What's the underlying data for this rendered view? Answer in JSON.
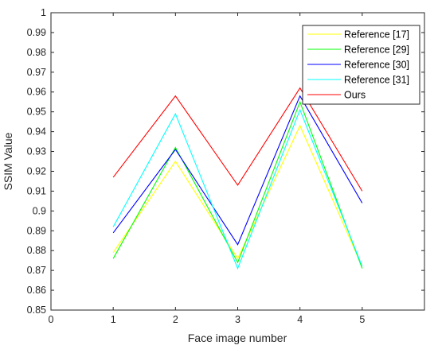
{
  "chart_data": {
    "type": "line",
    "xlabel": "Face image number",
    "ylabel": "SSIM Value",
    "xlim": [
      0,
      6
    ],
    "ylim": [
      0.85,
      1.0
    ],
    "xticks": [
      "0",
      "1",
      "2",
      "3",
      "4",
      "5"
    ],
    "yticks": [
      "0.85",
      "0.86",
      "0.87",
      "0.88",
      "0.89",
      "0.9",
      "0.91",
      "0.92",
      "0.93",
      "0.94",
      "0.95",
      "0.96",
      "0.97",
      "0.98",
      "0.99",
      "1"
    ],
    "x": [
      1,
      2,
      3,
      4,
      5
    ],
    "grid": false,
    "legend_position": "top-right",
    "series": [
      {
        "name": "Reference [17]",
        "color": "#ffff00",
        "values": [
          0.879,
          0.925,
          0.876,
          0.943,
          0.872
        ]
      },
      {
        "name": "Reference [29]",
        "color": "#00ff00",
        "values": [
          0.876,
          0.932,
          0.874,
          0.955,
          0.871
        ]
      },
      {
        "name": "Reference [30]",
        "color": "#0000ff",
        "values": [
          0.889,
          0.931,
          0.883,
          0.958,
          0.904
        ]
      },
      {
        "name": "Reference [31]",
        "color": "#00ffff",
        "values": [
          0.892,
          0.949,
          0.871,
          0.951,
          0.872
        ]
      },
      {
        "name": "Ours",
        "color": "#ff0000",
        "values": [
          0.917,
          0.958,
          0.913,
          0.962,
          0.91
        ]
      }
    ]
  }
}
